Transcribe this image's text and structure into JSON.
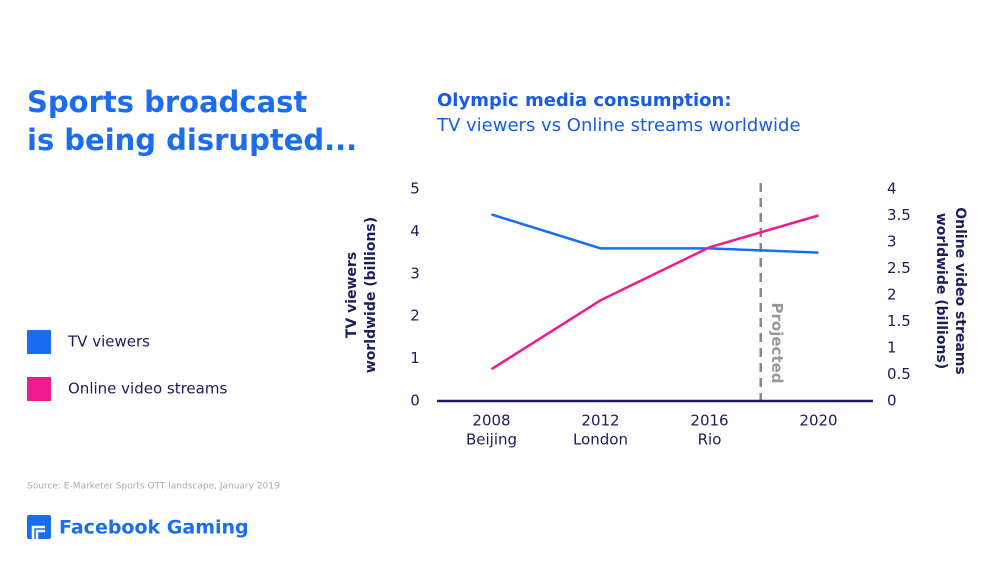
{
  "headline": [
    "Sports broadcast",
    "is being disrupted..."
  ],
  "source": "Source: E-Marketer Sports OTT landscape, January 2019",
  "brand": "Facebook Gaming",
  "chart_data": {
    "type": "line",
    "title": "Olympic media consumption:",
    "subtitle": "TV viewers vs Online streams worldwide",
    "categories": [
      "2008",
      "2012",
      "2016",
      "2020"
    ],
    "category_sublabels": [
      "Beijing",
      "London",
      "Rio",
      null
    ],
    "series": [
      {
        "name": "TV viewers",
        "color": "#1a6cf0",
        "values": [
          4.4,
          3.6,
          3.6,
          3.5
        ]
      },
      {
        "name": "Online video streams",
        "color": "#ec1c8e",
        "values": [
          0.6,
          1.9,
          2.9,
          3.5
        ],
        "axis": "y2"
      }
    ],
    "ylim": [
      0,
      5
    ],
    "yticks": [
      0,
      1,
      2,
      3,
      4,
      5
    ],
    "y2lim": [
      0,
      4
    ],
    "y2ticks": [
      0,
      0.5,
      1,
      1.5,
      2,
      2.5,
      3,
      3.5,
      4
    ],
    "ylabel": [
      "TV viewers",
      "worldwide (billions)"
    ],
    "y2label": [
      "Online video streams",
      "worldwide (billions)"
    ],
    "annotation": "Projected",
    "grid": false
  }
}
